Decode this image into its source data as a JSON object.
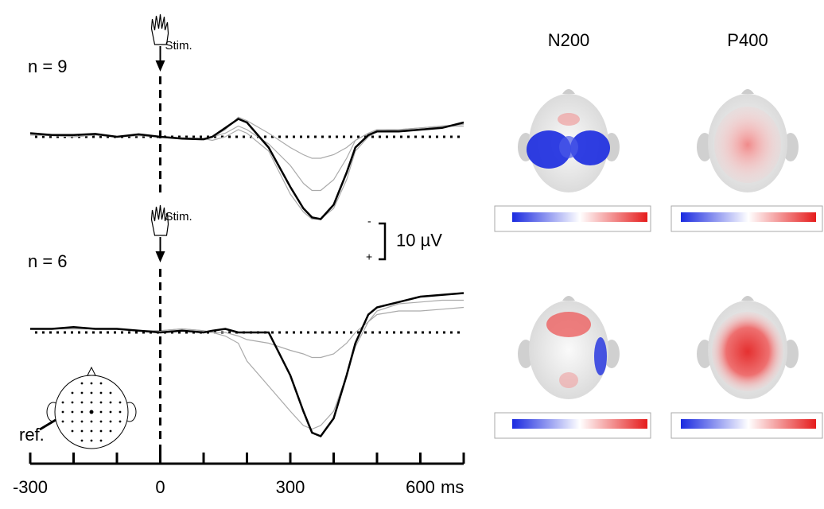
{
  "chart_data": [
    {
      "type": "line",
      "annotation": "n = 9",
      "stimulus_label": "Stim.",
      "inverted_y": true,
      "ylim": [
        -20,
        25
      ],
      "baseline": 0,
      "x": [
        -300,
        -250,
        -200,
        -150,
        -100,
        -50,
        0,
        50,
        100,
        120,
        150,
        180,
        200,
        250,
        300,
        330,
        350,
        370,
        400,
        430,
        450,
        480,
        500,
        550,
        600,
        650,
        700
      ],
      "series": [
        {
          "color": "#aaaaaa",
          "values": [
            -0.5,
            -0.5,
            0,
            -0.5,
            0,
            -0.5,
            0,
            0.3,
            0.5,
            0,
            -2,
            -5.5,
            -4.5,
            -1,
            3,
            5,
            6,
            6,
            5,
            3,
            1,
            -1,
            -2,
            -2,
            -2.5,
            -3,
            -3.5
          ]
        },
        {
          "color": "#aaaaaa",
          "values": [
            -0.5,
            -0.5,
            0,
            -0.5,
            0,
            -0.5,
            0,
            0.3,
            0.5,
            0,
            -1,
            -3,
            -2,
            2,
            8,
            13,
            15,
            15,
            12,
            6,
            1,
            -1,
            -2,
            -2,
            -2.5,
            -3,
            -3
          ]
        },
        {
          "color": "#aaaaaa",
          "values": [
            -0.5,
            -0.3,
            0,
            -0.5,
            0,
            -0.3,
            0,
            0.3,
            0.5,
            1,
            0,
            -2,
            -1,
            4,
            16,
            21,
            23,
            23,
            20,
            12,
            4,
            0,
            -1.5,
            -2,
            -2,
            -3,
            -3
          ]
        },
        {
          "color": "#000000",
          "values": [
            -1,
            -0.5,
            -0.5,
            -0.8,
            0,
            -0.7,
            0,
            0.5,
            0.7,
            0,
            -2.5,
            -5,
            -4,
            3,
            14,
            20,
            22.5,
            23,
            19,
            10,
            3,
            -0.5,
            -1.5,
            -1.5,
            -2,
            -2.5,
            -4
          ]
        }
      ]
    },
    {
      "type": "line",
      "annotation": "n = 6",
      "stimulus_label": "Stim.",
      "inverted_y": true,
      "ylim": [
        -20,
        32
      ],
      "baseline": 0,
      "x": [
        -300,
        -250,
        -200,
        -150,
        -100,
        -50,
        0,
        50,
        100,
        120,
        150,
        180,
        200,
        250,
        300,
        330,
        350,
        370,
        400,
        430,
        450,
        480,
        500,
        550,
        600,
        650,
        700
      ],
      "series": [
        {
          "color": "#aaaaaa",
          "values": [
            -1,
            -1,
            -1,
            -1,
            -1,
            -0.5,
            -0.5,
            -1,
            -0.5,
            0,
            0,
            1,
            2,
            3,
            5,
            6,
            7,
            7,
            6,
            3,
            0,
            -3,
            -5,
            -6,
            -6,
            -6.5,
            -7
          ]
        },
        {
          "color": "#aaaaaa",
          "values": [
            -1,
            -1,
            -1,
            -1,
            -1,
            -0.5,
            -0.5,
            -1,
            -0.5,
            0,
            1,
            3,
            8,
            15,
            22,
            26,
            27,
            26,
            22,
            12,
            4,
            -3,
            -6,
            -8,
            -8.5,
            -9,
            -9
          ]
        },
        {
          "color": "#000000",
          "values": [
            -1,
            -1,
            -1.5,
            -1,
            -1,
            -0.5,
            0,
            -0.5,
            0,
            -0.5,
            -1,
            0,
            0,
            0,
            12,
            22,
            28,
            29,
            24,
            12,
            3,
            -5,
            -7,
            -8.5,
            -10,
            -10.5,
            -11
          ]
        }
      ]
    }
  ],
  "x_axis": {
    "xlim": [
      -300,
      700
    ],
    "xticks": [
      -300,
      0,
      300,
      600
    ],
    "minor_xticks": [
      -200,
      -100,
      100,
      200,
      400,
      500,
      700
    ],
    "unit": "ms"
  },
  "scale_bar": {
    "value": 10,
    "label": "10 µV",
    "top_sign": "-",
    "bottom_sign": "+"
  },
  "electrode_map": {
    "label": "ref."
  },
  "topomaps": {
    "columns": [
      "N200",
      "P400"
    ]
  }
}
